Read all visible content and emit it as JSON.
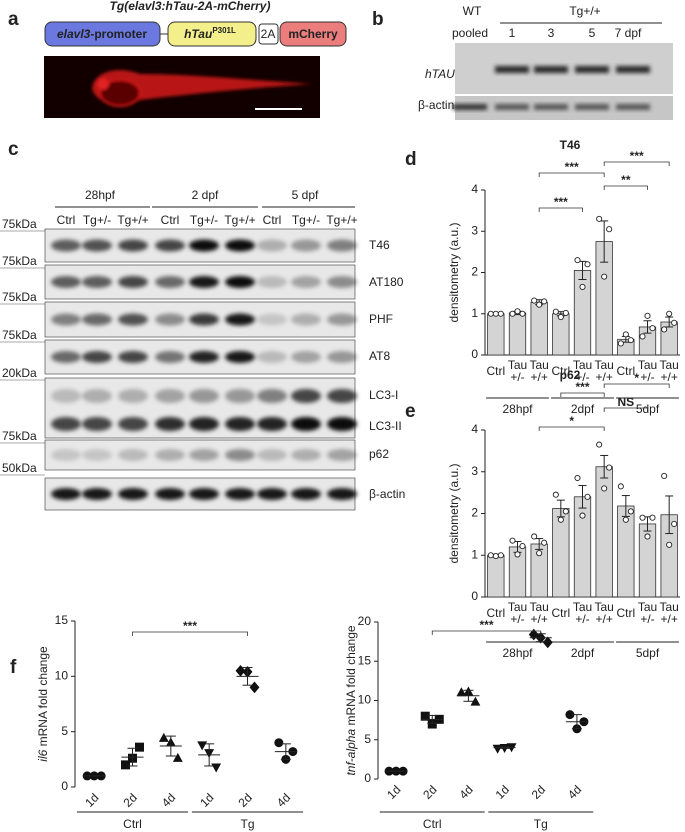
{
  "panels": {
    "a": {
      "label": "a",
      "title": "Tg(elavl3:hTau-2A-mCherry)",
      "promoter": {
        "italic": "elavl3",
        "text": "-promoter"
      },
      "gene": {
        "italic": "hTau",
        "sup": "P301L"
      },
      "linker": "2A",
      "reporter": "mCherry"
    },
    "b": {
      "label": "b",
      "wt": "WT",
      "tg": "Tg+/+",
      "lanes": [
        "pooled",
        "1",
        "3",
        "5",
        "7 dpf"
      ],
      "rows": [
        "hTAU",
        "β-actin"
      ]
    },
    "c": {
      "label": "c",
      "groups": [
        "28hpf",
        "2 dpf",
        "5 dpf"
      ],
      "lanes": [
        "Ctrl",
        "Tg+/-",
        "Tg+/+"
      ],
      "markers": [
        "75kDa",
        "75kDa",
        "75kDa",
        "75kDa",
        "20kDa",
        "75kDa",
        "50kDa"
      ],
      "blots": [
        "T46",
        "AT180",
        "PHF",
        "AT8",
        "LC3-I",
        "LC3-II",
        "p62",
        "β-actin"
      ]
    }
  },
  "chart_data": [
    {
      "type": "bar",
      "panel_label": "d",
      "title": "T46",
      "y_label": "densitometry  (a.u.)",
      "color": "#d4d4d4",
      "categories": [
        [
          "Ctrl"
        ],
        [
          "Tau",
          "+/-"
        ],
        [
          "Tau",
          "+/+"
        ],
        [
          "Ctrl"
        ],
        [
          "Tau",
          "+/-"
        ],
        [
          "Tau",
          "+/+"
        ],
        [
          "Ctrl"
        ],
        [
          "Tau",
          "+/-"
        ],
        [
          "Tau",
          "+/+"
        ]
      ],
      "groups": [
        "28hpf",
        "2dpf",
        "5dpf"
      ],
      "values": [
        1.0,
        1.02,
        1.28,
        1.0,
        2.05,
        2.75,
        0.38,
        0.68,
        0.8
      ],
      "errors": [
        0.0,
        0.04,
        0.06,
        0.05,
        0.22,
        0.5,
        0.07,
        0.15,
        0.12
      ],
      "points": [
        [
          1.0,
          1.0,
          1.0
        ],
        [
          1.0,
          1.06,
          1.0
        ],
        [
          1.32,
          1.22,
          1.3
        ],
        [
          1.05,
          0.92,
          1.02
        ],
        [
          2.3,
          1.65,
          2.2
        ],
        [
          3.3,
          1.9,
          3.05
        ],
        [
          0.28,
          0.5,
          0.36
        ],
        [
          0.45,
          0.95,
          0.65
        ],
        [
          0.62,
          1.0,
          0.78
        ]
      ],
      "ylim": [
        0,
        4
      ],
      "yticks": [
        0,
        1,
        2,
        3,
        4
      ],
      "comparisons": [
        {
          "between": [
            2,
            4
          ],
          "label": "***"
        },
        {
          "between": [
            2,
            5
          ],
          "label": "***"
        },
        {
          "between": [
            5,
            7
          ],
          "label": "**"
        },
        {
          "between": [
            5,
            8
          ],
          "label": "***"
        }
      ]
    },
    {
      "type": "bar",
      "panel_label": "e",
      "title": "p62",
      "y_label": "densitometry  (a.u.)",
      "color": "#d4d4d4",
      "categories": [
        [
          "Ctrl"
        ],
        [
          "Tau",
          "+/-"
        ],
        [
          "Tau",
          "+/+"
        ],
        [
          "Ctrl"
        ],
        [
          "Tau",
          "+/-"
        ],
        [
          "Tau",
          "+/+"
        ],
        [
          "Ctrl"
        ],
        [
          "Tau",
          "+/-"
        ],
        [
          "Tau",
          "+/+"
        ]
      ],
      "groups": [
        "28hpf",
        "2dpf",
        "5dpf"
      ],
      "values": [
        1.0,
        1.2,
        1.27,
        2.12,
        2.4,
        3.12,
        2.18,
        1.75,
        1.97
      ],
      "errors": [
        0.02,
        0.13,
        0.13,
        0.2,
        0.27,
        0.27,
        0.25,
        0.17,
        0.45
      ],
      "points": [
        [
          1.0,
          0.98,
          1.0
        ],
        [
          1.35,
          1.02,
          1.22
        ],
        [
          1.45,
          1.05,
          1.3
        ],
        [
          2.45,
          1.85,
          2.05
        ],
        [
          2.85,
          1.95,
          2.4
        ],
        [
          3.65,
          2.6,
          3.1
        ],
        [
          2.65,
          1.85,
          2.05
        ],
        [
          1.9,
          1.45,
          1.9
        ],
        [
          2.9,
          1.25,
          1.75
        ]
      ],
      "ylim": [
        0,
        4
      ],
      "yticks": [
        0,
        1,
        2,
        3,
        4
      ],
      "comparisons": [
        {
          "between": [
            2,
            5
          ],
          "label": "*"
        },
        {
          "between": [
            3,
            5
          ],
          "label": "***"
        },
        {
          "between": [
            5,
            7
          ],
          "label": "NS"
        },
        {
          "between": [
            5,
            8
          ],
          "label": "*"
        }
      ]
    },
    {
      "type": "dot",
      "panel_label": "f",
      "y_label": {
        "italic": "il6",
        "text": " mRNA fold change"
      },
      "color": "#111111",
      "categories": [
        "1d",
        "2d",
        "4d",
        "1d",
        "2d",
        "4d"
      ],
      "groups": [
        "Ctrl",
        "Tg"
      ],
      "markers": [
        "circle",
        "square",
        "triangle",
        "triangle-down",
        "diamond",
        "circle"
      ],
      "points": [
        [
          1.0,
          1.0,
          1.0
        ],
        [
          2.0,
          2.6,
          3.6
        ],
        [
          4.4,
          4.0,
          2.6
        ],
        [
          3.8,
          3.1,
          1.8
        ],
        [
          10.5,
          10.4,
          9.0
        ],
        [
          4.0,
          2.5,
          3.2
        ]
      ],
      "means": [
        1.0,
        2.7,
        3.7,
        2.9,
        10.0,
        3.2
      ],
      "sd": [
        0.0,
        0.8,
        0.9,
        1.0,
        0.8,
        0.7
      ],
      "ylim": [
        0,
        15
      ],
      "yticks": [
        0,
        5,
        10,
        15
      ],
      "comparisons": [
        {
          "between": [
            1,
            4
          ],
          "label": "***"
        }
      ]
    },
    {
      "type": "dot",
      "y_label": {
        "italic": "tnf-alpha",
        "text": " mRNA fold change"
      },
      "color": "#111111",
      "categories": [
        "1d",
        "2d",
        "4d",
        "1d",
        "2d",
        "4d"
      ],
      "groups": [
        "Ctrl",
        "Tg"
      ],
      "markers": [
        "circle",
        "square",
        "triangle",
        "triangle-down",
        "diamond",
        "circle"
      ],
      "points": [
        [
          1.0,
          1.0,
          1.0
        ],
        [
          8.0,
          7.0,
          7.6
        ],
        [
          11.0,
          11.1,
          9.8
        ],
        [
          3.9,
          4.0,
          4.1
        ],
        [
          18.4,
          18.0,
          17.4
        ],
        [
          8.2,
          6.4,
          7.3
        ]
      ],
      "means": [
        1.0,
        7.6,
        10.6,
        4.0,
        18.0,
        7.3
      ],
      "sd": [
        0.0,
        0.5,
        0.7,
        0.1,
        0.5,
        0.9
      ],
      "ylim": [
        0,
        20
      ],
      "yticks": [
        0,
        5,
        10,
        15,
        20
      ],
      "comparisons": [
        {
          "between": [
            1,
            4
          ],
          "label": "***"
        }
      ]
    }
  ]
}
